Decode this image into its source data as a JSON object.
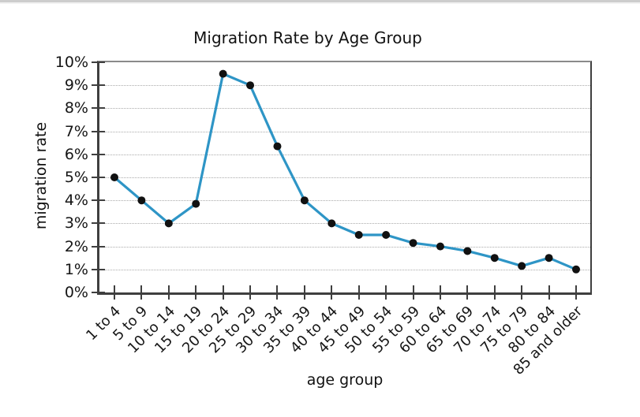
{
  "chart_data": {
    "type": "line",
    "title": "Migration Rate by Age Group",
    "xlabel": "age group",
    "ylabel": "migration rate",
    "categories": [
      "1 to 4",
      "5 to 9",
      "10 to 14",
      "15 to 19",
      "20 to 24",
      "25 to 29",
      "30 to 34",
      "35 to 39",
      "40 to 44",
      "45 to 49",
      "50 to 54",
      "55 to 59",
      "60 to 64",
      "65 to 69",
      "70 to 74",
      "75 to 79",
      "80 to 84",
      "85 and older"
    ],
    "values": [
      5.0,
      4.0,
      3.0,
      3.85,
      9.5,
      9.0,
      6.35,
      4.0,
      3.0,
      2.5,
      2.5,
      2.15,
      2.0,
      1.8,
      1.5,
      1.15,
      1.5,
      1.0
    ],
    "unit": "%",
    "ylim": [
      0,
      10
    ],
    "ytick_labels": [
      "0%",
      "1%",
      "2%",
      "3%",
      "4%",
      "5%",
      "6%",
      "7%",
      "8%",
      "9%",
      "10%"
    ],
    "grid": true,
    "legend": "none",
    "line_color": "#2E95C6",
    "marker_color": "#111111"
  }
}
